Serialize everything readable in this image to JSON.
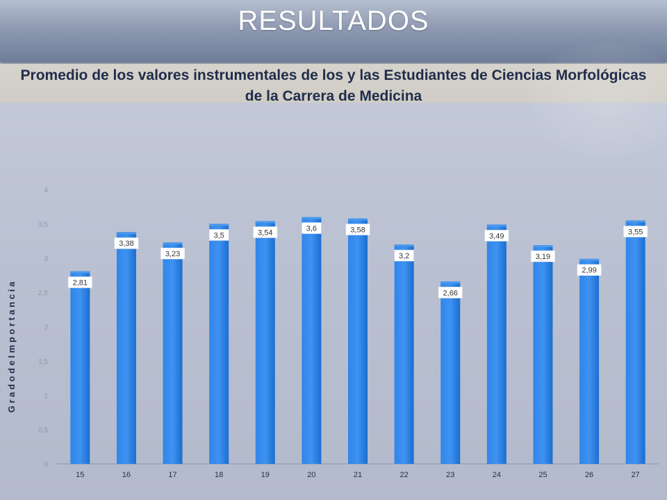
{
  "header": {
    "title": "RESULTADOS"
  },
  "colors": {
    "bar": "#1c73d6",
    "bar_light": "#4a98ee",
    "label_bg": "#ffffff",
    "label_text": "#333333"
  },
  "chart_data": {
    "type": "bar",
    "title": "Promedio de los valores instrumentales de los y las Estudiantes de Ciencias Morfológicas de la Carrera de Medicina",
    "ylabel": "G r a d o   d e   I m p o r t a n c i a",
    "xlabel": "",
    "ylim": [
      0,
      4
    ],
    "yticks": [
      "0",
      "0,5",
      "1",
      "1,5",
      "2",
      "2,5",
      "3",
      "3,5",
      "4"
    ],
    "categories": [
      "15",
      "16",
      "17",
      "18",
      "19",
      "20",
      "21",
      "22",
      "23",
      "24",
      "25",
      "26",
      "27"
    ],
    "values": [
      2.81,
      3.38,
      3.23,
      3.5,
      3.54,
      3.6,
      3.58,
      3.2,
      2.66,
      3.49,
      3.19,
      2.99,
      3.55
    ],
    "data_labels": [
      "2,81",
      "3,38",
      "3,23",
      "3,5",
      "3,54",
      "3,6",
      "3,58",
      "3,2",
      "2,66",
      "3,49",
      "3,19",
      "2,99",
      "3,55"
    ],
    "grid": false
  }
}
